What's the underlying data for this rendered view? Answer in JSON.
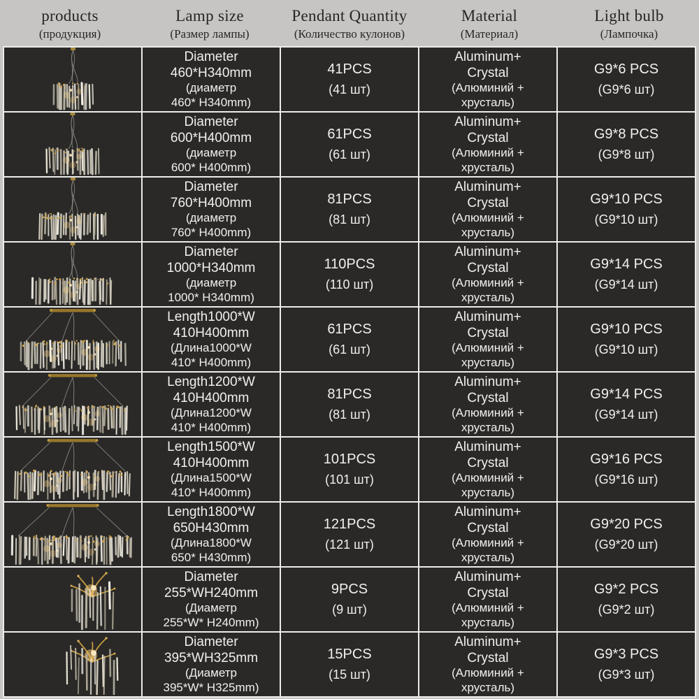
{
  "colors": {
    "page_bg": "#c6c5c3",
    "cell_bg": "#2a2927",
    "border": "#ececec",
    "cell_text": "#f1f0ee",
    "header_text": "#262624",
    "gold": "#c39a42",
    "crystal": "#ece7d9"
  },
  "header": {
    "columns": [
      {
        "label": "products",
        "sublabel": "(продукция)"
      },
      {
        "label": "Lamp size",
        "sublabel": "(Размер лампы)"
      },
      {
        "label": "Pendant Quantity",
        "sublabel": "(Количество кулонов)"
      },
      {
        "label": "Material",
        "sublabel": "(Материал)"
      },
      {
        "label": "Light bulb",
        "sublabel": "(Лампочка)"
      }
    ]
  },
  "rows": [
    {
      "product_image": "round-crystal-chandelier",
      "lamp_size": {
        "main": "Diameter\n460*H340mm",
        "sub": "(диаметр\n460* H340mm)"
      },
      "pendant": {
        "main": "41PCS",
        "sub": "(41 шт)"
      },
      "material": {
        "main": "Aluminum+\nCrystal",
        "sub": "(Алюминий +\nхрусталь)"
      },
      "bulb": {
        "main": "G9*6 PCS",
        "sub": "(G9*6 шт)"
      }
    },
    {
      "product_image": "round-crystal-chandelier",
      "lamp_size": {
        "main": "Diameter\n600*H400mm",
        "sub": "(диаметр\n600* H400mm)"
      },
      "pendant": {
        "main": "61PCS",
        "sub": "(61 шт)"
      },
      "material": {
        "main": "Aluminum+\nCrystal",
        "sub": "(Алюминий +\nхрусталь)"
      },
      "bulb": {
        "main": "G9*8 PCS",
        "sub": "(G9*8 шт)"
      }
    },
    {
      "product_image": "round-crystal-chandelier",
      "lamp_size": {
        "main": "Diameter\n760*H400mm",
        "sub": "(диаметр\n760* H400mm)"
      },
      "pendant": {
        "main": "81PCS",
        "sub": "(81 шт)"
      },
      "material": {
        "main": "Aluminum+\nCrystal",
        "sub": "(Алюминий +\nхрусталь)"
      },
      "bulb": {
        "main": "G9*10 PCS",
        "sub": "(G9*10 шт)"
      }
    },
    {
      "product_image": "round-crystal-chandelier",
      "lamp_size": {
        "main": "Diameter\n1000*H340mm",
        "sub": "(диаметр\n1000* H340mm)"
      },
      "pendant": {
        "main": "110PCS",
        "sub": "(110 шт)"
      },
      "material": {
        "main": "Aluminum+\nCrystal",
        "sub": "(Алюминий +\nхрусталь)"
      },
      "bulb": {
        "main": "G9*14 PCS",
        "sub": "(G9*14 шт)"
      }
    },
    {
      "product_image": "linear-crystal-chandelier",
      "lamp_size": {
        "main": "Length1000*W\n410H400mm",
        "sub": "(Длина1000*W\n410* H400mm)"
      },
      "pendant": {
        "main": "61PCS",
        "sub": "(61 шт)"
      },
      "material": {
        "main": "Aluminum+\nCrystal",
        "sub": "(Алюминий +\nхрусталь)"
      },
      "bulb": {
        "main": "G9*10 PCS",
        "sub": "(G9*10 шт)"
      }
    },
    {
      "product_image": "linear-crystal-chandelier",
      "lamp_size": {
        "main": "Length1200*W\n410H400mm",
        "sub": "(Длина1200*W\n410* H400mm)"
      },
      "pendant": {
        "main": "81PCS",
        "sub": "(81 шт)"
      },
      "material": {
        "main": "Aluminum+\nCrystal",
        "sub": "(Алюминий +\nхрусталь)"
      },
      "bulb": {
        "main": "G9*14 PCS",
        "sub": "(G9*14 шт)"
      }
    },
    {
      "product_image": "linear-crystal-chandelier",
      "lamp_size": {
        "main": "Length1500*W\n410H400mm",
        "sub": "(Длина1500*W\n410* H400mm)"
      },
      "pendant": {
        "main": "101PCS",
        "sub": "(101 шт)"
      },
      "material": {
        "main": "Aluminum+\nCrystal",
        "sub": "(Алюминий +\nхрусталь)"
      },
      "bulb": {
        "main": "G9*16 PCS",
        "sub": "(G9*16 шт)"
      }
    },
    {
      "product_image": "linear-crystal-chandelier",
      "lamp_size": {
        "main": "Length1800*W\n650H430mm",
        "sub": "(Длина1800*W\n650* H430mm)"
      },
      "pendant": {
        "main": "121PCS",
        "sub": "(121 шт)"
      },
      "material": {
        "main": "Aluminum+\nCrystal",
        "sub": "(Алюминий +\nхрусталь)"
      },
      "bulb": {
        "main": "G9*20 PCS",
        "sub": "(G9*20 шт)"
      }
    },
    {
      "product_image": "branch-crystal-wall-lamp",
      "lamp_size": {
        "main": "Diameter\n255*WH240mm",
        "sub": "(Диаметр\n255*W* H240mm)"
      },
      "pendant": {
        "main": "9PCS",
        "sub": "(9 шт)"
      },
      "material": {
        "main": "Aluminum+\nCrystal",
        "sub": "(Алюминий +\nхрусталь)"
      },
      "bulb": {
        "main": "G9*2 PCS",
        "sub": "(G9*2 шт)"
      }
    },
    {
      "product_image": "branch-crystal-wall-lamp",
      "lamp_size": {
        "main": "Diameter\n395*WH325mm",
        "sub": "(Диаметр\n395*W* H325mm)"
      },
      "pendant": {
        "main": "15PCS",
        "sub": "(15 шт)"
      },
      "material": {
        "main": "Aluminum+\nCrystal",
        "sub": "(Алюминий +\nхрусталь)"
      },
      "bulb": {
        "main": "G9*3 PCS",
        "sub": "(G9*3 шт)"
      }
    }
  ]
}
